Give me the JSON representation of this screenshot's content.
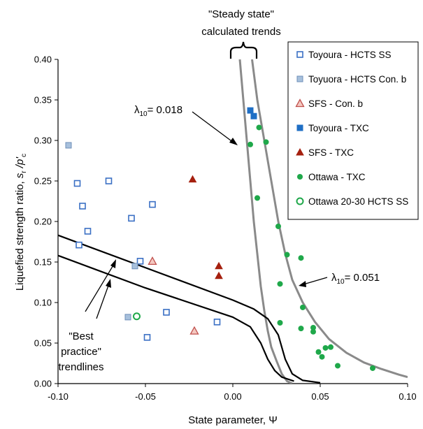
{
  "chart_data": {
    "type": "scatter",
    "title": "",
    "xlabel": "State parameter, Ψ",
    "ylabel_parts": [
      "Liquefied strength ratio, ",
      "s",
      "r",
      " /p'",
      "c"
    ],
    "xlim": [
      -0.1,
      0.1
    ],
    "ylim": [
      0.0,
      0.4
    ],
    "x_ticks": [
      -0.1,
      -0.05,
      0.0,
      0.05,
      0.1
    ],
    "x_tick_labels": [
      "-0.10",
      "-0.05",
      "0.00",
      "0.05",
      "0.10"
    ],
    "y_ticks": [
      0.0,
      0.05,
      0.1,
      0.15,
      0.2,
      0.25,
      0.3,
      0.35,
      0.4
    ],
    "y_tick_labels": [
      "0.00",
      "0.05",
      "0.10",
      "0.15",
      "0.20",
      "0.25",
      "0.30",
      "0.35",
      "0.40"
    ],
    "grid": false,
    "legend_position": "top-right",
    "series": [
      {
        "name": "Toyoura - HCTS SS",
        "marker": "square-open",
        "color": "#3a6fc4",
        "x": [
          -0.089,
          -0.086,
          -0.083,
          -0.088,
          -0.071,
          -0.058,
          -0.046,
          -0.053,
          -0.038,
          -0.049,
          -0.009
        ],
        "y": [
          0.247,
          0.219,
          0.188,
          0.171,
          0.25,
          0.204,
          0.221,
          0.151,
          0.088,
          0.057,
          0.076
        ]
      },
      {
        "name": "Toyuora - HCTS Con. b",
        "marker": "square-filled",
        "color": "#a7c0dc",
        "x": [
          -0.094,
          -0.056,
          -0.06
        ],
        "y": [
          0.294,
          0.145,
          0.082
        ]
      },
      {
        "name": "SFS - Con. b",
        "marker": "triangle-open",
        "color": "#c0504d",
        "x": [
          -0.046,
          -0.022
        ],
        "y": [
          0.151,
          0.065
        ]
      },
      {
        "name": "Toyoura - TXC",
        "marker": "square-filled",
        "color": "#1f6fc5",
        "x": [
          0.01,
          0.012
        ],
        "y": [
          0.337,
          0.33
        ]
      },
      {
        "name": "SFS - TXC",
        "marker": "triangle-filled",
        "color": "#a5200f",
        "x": [
          -0.023,
          -0.008,
          -0.008
        ],
        "y": [
          0.252,
          0.145,
          0.133
        ]
      },
      {
        "name": "Ottawa - TXC",
        "marker": "circle-filled",
        "color": "#1fa84a",
        "x": [
          0.01,
          0.015,
          0.019,
          0.014,
          0.026,
          0.031,
          0.039,
          0.027,
          0.04,
          0.027,
          0.039,
          0.046,
          0.046,
          0.049,
          0.051,
          0.053,
          0.056,
          0.06,
          0.08
        ],
        "y": [
          0.295,
          0.316,
          0.298,
          0.229,
          0.194,
          0.159,
          0.155,
          0.123,
          0.094,
          0.075,
          0.068,
          0.069,
          0.064,
          0.039,
          0.033,
          0.044,
          0.045,
          0.022,
          0.019
        ]
      },
      {
        "name": "Ottawa 20-30 HCTS SS",
        "marker": "circle-open",
        "color": "#1fa84a",
        "x": [
          -0.055
        ],
        "y": [
          0.083
        ]
      }
    ],
    "annotations": {
      "top_label_line1": "\"Steady state\"",
      "top_label_line2": "calculated trends",
      "lambda_label": "λ",
      "lambda_sub": "10",
      "lambda1_value": "= 0.018",
      "lambda2_value": "= 0.051",
      "best_line1": "\"Best",
      "best_line2": "practice\"",
      "best_line3": "trendlines"
    }
  }
}
